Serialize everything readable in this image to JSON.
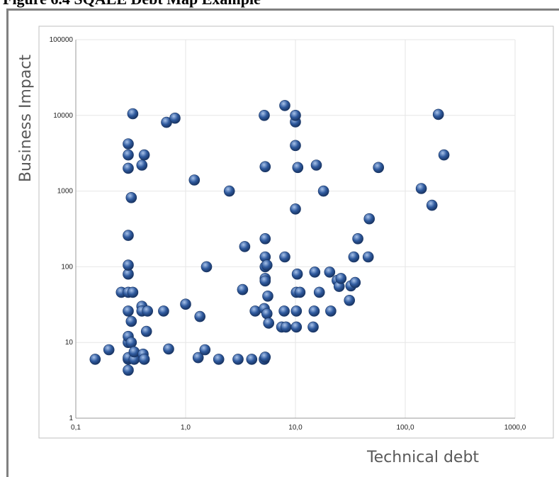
{
  "figure_caption": "Figure 6.4 SQALE Debt Map Example",
  "colors": {
    "bubble": "#2f5a9e",
    "bubble_highlight": "#a9c3ea",
    "bubble_dark": "#183463",
    "grid": "#e6e6e6",
    "frame": "#808080"
  },
  "chart_data": {
    "type": "scatter",
    "title": "",
    "xlabel": "Technical debt",
    "ylabel": "Business Impact",
    "xscale": "log",
    "yscale": "log",
    "xlim": [
      0.1,
      1000
    ],
    "ylim": [
      1,
      100000
    ],
    "x_ticks": [
      "0,1",
      "1,0",
      "10,0",
      "100,0",
      "1000,0"
    ],
    "y_ticks": [
      "1",
      "10",
      "100",
      "1000",
      "10000",
      "100000"
    ],
    "grid": true,
    "legend": "none",
    "points": [
      [
        0.15,
        6
      ],
      [
        0.2,
        8
      ],
      [
        0.26,
        46
      ],
      [
        0.3,
        4.3
      ],
      [
        0.3,
        6
      ],
      [
        0.3,
        6.3
      ],
      [
        0.3,
        10
      ],
      [
        0.3,
        12
      ],
      [
        0.3,
        26
      ],
      [
        0.3,
        46
      ],
      [
        0.3,
        80
      ],
      [
        0.3,
        105
      ],
      [
        0.3,
        260
      ],
      [
        0.3,
        2000
      ],
      [
        0.3,
        3000
      ],
      [
        0.3,
        4200
      ],
      [
        0.32,
        10
      ],
      [
        0.32,
        19
      ],
      [
        0.32,
        820
      ],
      [
        0.33,
        46
      ],
      [
        0.33,
        10500
      ],
      [
        0.34,
        6
      ],
      [
        0.34,
        7.5
      ],
      [
        0.4,
        30
      ],
      [
        0.4,
        26
      ],
      [
        0.4,
        2200
      ],
      [
        0.41,
        7
      ],
      [
        0.42,
        6
      ],
      [
        0.42,
        3000
      ],
      [
        0.44,
        14
      ],
      [
        0.45,
        26
      ],
      [
        0.63,
        26
      ],
      [
        0.67,
        8100
      ],
      [
        0.7,
        8.2
      ],
      [
        0.8,
        9200
      ],
      [
        1.0,
        32
      ],
      [
        1.2,
        1400
      ],
      [
        1.3,
        6.3
      ],
      [
        1.35,
        22
      ],
      [
        1.5,
        8
      ],
      [
        1.55,
        100
      ],
      [
        2.0,
        6
      ],
      [
        2.5,
        1000
      ],
      [
        3.0,
        6
      ],
      [
        3.3,
        50
      ],
      [
        3.45,
        185
      ],
      [
        4.0,
        6
      ],
      [
        4.3,
        26
      ],
      [
        5.2,
        10000
      ],
      [
        5.3,
        2100
      ],
      [
        5.2,
        28
      ],
      [
        5.2,
        6
      ],
      [
        5.3,
        6.4
      ],
      [
        5.3,
        70
      ],
      [
        5.3,
        65
      ],
      [
        5.3,
        100
      ],
      [
        5.3,
        135
      ],
      [
        5.3,
        235
      ],
      [
        5.5,
        105
      ],
      [
        5.5,
        24
      ],
      [
        5.6,
        41
      ],
      [
        5.7,
        18
      ],
      [
        7.5,
        16
      ],
      [
        7.9,
        26
      ],
      [
        8.0,
        13500
      ],
      [
        8.0,
        135
      ],
      [
        8.2,
        16
      ],
      [
        10.0,
        8200
      ],
      [
        10.0,
        10000
      ],
      [
        10.0,
        4000
      ],
      [
        10.0,
        580
      ],
      [
        10.2,
        26
      ],
      [
        10.2,
        16
      ],
      [
        10.2,
        46
      ],
      [
        10.4,
        80
      ],
      [
        10.5,
        2050
      ],
      [
        11.0,
        46
      ],
      [
        14.5,
        16
      ],
      [
        14.8,
        26
      ],
      [
        15.0,
        85
      ],
      [
        15.5,
        2200
      ],
      [
        16.5,
        46
      ],
      [
        18.0,
        1000
      ],
      [
        20.5,
        85
      ],
      [
        21.0,
        26
      ],
      [
        24.0,
        66
      ],
      [
        25.0,
        55
      ],
      [
        26.0,
        70
      ],
      [
        31.0,
        36
      ],
      [
        32.0,
        56
      ],
      [
        34.0,
        135
      ],
      [
        35.0,
        62
      ],
      [
        37.0,
        235
      ],
      [
        46.0,
        135
      ],
      [
        47.0,
        430
      ],
      [
        57.0,
        2050
      ],
      [
        140.0,
        1080
      ],
      [
        175.0,
        650
      ],
      [
        200.0,
        10300
      ],
      [
        225.0,
        3000
      ]
    ]
  }
}
